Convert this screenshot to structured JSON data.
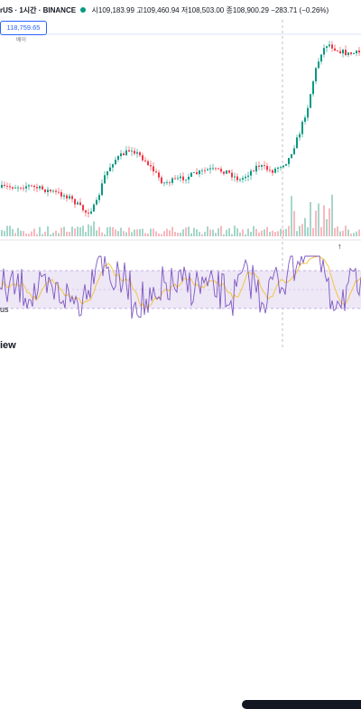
{
  "header": {
    "symbol_suffix": "rUS · 1시간 · BINANCE",
    "open_label": "시",
    "open_value": "109,183.99",
    "high_label": "고",
    "high_value": "109,460.94",
    "low_label": "저",
    "low_value": "108,503.00",
    "close_label": "종",
    "close_value": "108,900.29",
    "change": "−283.71 (−0.26%)"
  },
  "price_badge": {
    "value": "118,759.65",
    "sub": "배이"
  },
  "symbol_line": "rUS · 1시간 · BINANCE",
  "rsi_label": "us",
  "brand_text": "iew",
  "up_arrow": "↑",
  "colors": {
    "up": "#089981",
    "down": "#f23645",
    "rsi_line": "#7e57c2",
    "rsi_ma": "#f5c542",
    "rsi_band": "#ede7f6",
    "accent": "#2962ff"
  }
}
